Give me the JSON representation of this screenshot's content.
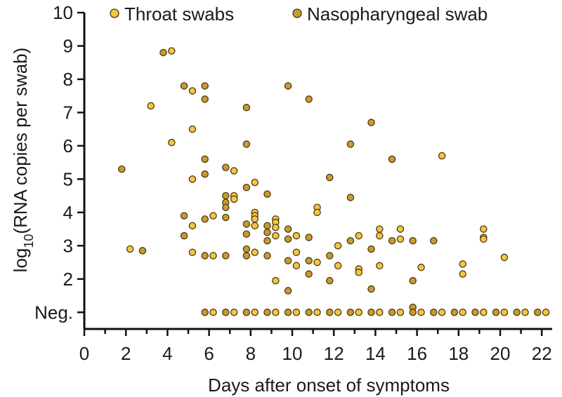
{
  "chart_data": {
    "type": "scatter",
    "title": "",
    "xlabel": "Days after onset of symptoms",
    "ylabel": {
      "prefix": "log",
      "subscript": "10",
      "suffix": "(RNA copies per swab)"
    },
    "xlim": [
      0,
      22.5
    ],
    "ylim": [
      0.5,
      10
    ],
    "x_ticks": [
      0,
      2,
      4,
      6,
      8,
      10,
      12,
      14,
      16,
      18,
      20,
      22
    ],
    "y_ticks": [
      2,
      3,
      4,
      5,
      6,
      7,
      8,
      9,
      10
    ],
    "neg_label": "Neg.",
    "neg_value": 1,
    "legend_position": "top",
    "colors": {
      "throat": "#f5c542",
      "nasopharyngeal": "#c99a30"
    },
    "series": [
      {
        "name": "Throat swabs",
        "key": "throat",
        "points": [
          [
            2.2,
            2.9
          ],
          [
            3.2,
            7.2
          ],
          [
            4.2,
            8.85
          ],
          [
            4.2,
            6.1
          ],
          [
            5.2,
            7.65
          ],
          [
            5.2,
            6.5
          ],
          [
            5.2,
            5.0
          ],
          [
            5.2,
            3.6
          ],
          [
            5.2,
            2.8
          ],
          [
            6.2,
            3.9
          ],
          [
            6.2,
            2.7
          ],
          [
            7.2,
            5.25
          ],
          [
            7.2,
            4.5
          ],
          [
            7.2,
            4.4
          ],
          [
            8.2,
            4.9
          ],
          [
            8.2,
            4.0
          ],
          [
            8.2,
            3.9
          ],
          [
            8.2,
            3.8
          ],
          [
            8.2,
            3.6
          ],
          [
            8.2,
            2.8
          ],
          [
            9.2,
            3.8
          ],
          [
            9.2,
            3.7
          ],
          [
            9.2,
            3.55
          ],
          [
            9.2,
            3.3
          ],
          [
            9.2,
            1.95
          ],
          [
            10.2,
            3.3
          ],
          [
            10.2,
            2.8
          ],
          [
            10.2,
            2.4
          ],
          [
            11.2,
            4.15
          ],
          [
            11.2,
            4.0
          ],
          [
            11.2,
            2.5
          ],
          [
            12.2,
            3.0
          ],
          [
            12.2,
            2.4
          ],
          [
            13.2,
            3.3
          ],
          [
            13.2,
            2.3
          ],
          [
            13.2,
            2.2
          ],
          [
            14.2,
            3.5
          ],
          [
            14.2,
            3.3
          ],
          [
            14.2,
            2.4
          ],
          [
            15.2,
            3.5
          ],
          [
            15.2,
            3.2
          ],
          [
            16.2,
            2.35
          ],
          [
            17.2,
            5.7
          ],
          [
            18.2,
            2.45
          ],
          [
            18.2,
            2.15
          ],
          [
            19.2,
            3.5
          ],
          [
            19.2,
            3.25
          ],
          [
            19.2,
            3.2
          ],
          [
            20.2,
            2.65
          ],
          [
            6.2,
            1
          ],
          [
            7.2,
            1
          ],
          [
            8.2,
            1
          ],
          [
            9.2,
            1
          ],
          [
            10.2,
            1
          ],
          [
            11.2,
            1
          ],
          [
            12.2,
            1
          ],
          [
            13.2,
            1
          ],
          [
            14.2,
            1
          ],
          [
            15.2,
            1
          ],
          [
            16.2,
            1
          ],
          [
            17.2,
            1
          ],
          [
            18.2,
            1
          ],
          [
            19.2,
            1
          ],
          [
            20.2,
            1
          ],
          [
            21.2,
            1
          ],
          [
            22.2,
            1
          ]
        ]
      },
      {
        "name": "Nasopharyngeal swab",
        "key": "nasopharyngeal",
        "points": [
          [
            1.8,
            5.3
          ],
          [
            2.8,
            2.85
          ],
          [
            3.8,
            8.8
          ],
          [
            4.8,
            7.8
          ],
          [
            4.8,
            3.9
          ],
          [
            4.8,
            3.3
          ],
          [
            5.8,
            7.8
          ],
          [
            5.8,
            7.4
          ],
          [
            5.8,
            5.6
          ],
          [
            5.8,
            5.15
          ],
          [
            5.8,
            3.8
          ],
          [
            5.8,
            2.7
          ],
          [
            6.8,
            5.35
          ],
          [
            6.8,
            4.5
          ],
          [
            6.8,
            4.3
          ],
          [
            6.8,
            4.15
          ],
          [
            6.8,
            3.85
          ],
          [
            6.8,
            2.7
          ],
          [
            7.8,
            7.15
          ],
          [
            7.8,
            6.05
          ],
          [
            7.8,
            4.75
          ],
          [
            7.8,
            3.65
          ],
          [
            7.8,
            3.35
          ],
          [
            7.8,
            2.9
          ],
          [
            7.8,
            2.7
          ],
          [
            8.8,
            4.55
          ],
          [
            8.8,
            3.6
          ],
          [
            8.8,
            3.4
          ],
          [
            8.8,
            3.15
          ],
          [
            8.8,
            2.7
          ],
          [
            9.8,
            7.8
          ],
          [
            9.8,
            3.5
          ],
          [
            9.8,
            3.2
          ],
          [
            9.8,
            2.55
          ],
          [
            9.8,
            1.65
          ],
          [
            10.8,
            7.4
          ],
          [
            10.8,
            3.25
          ],
          [
            10.8,
            2.55
          ],
          [
            10.8,
            2.15
          ],
          [
            11.8,
            5.05
          ],
          [
            11.8,
            2.7
          ],
          [
            11.8,
            1.95
          ],
          [
            12.8,
            6.05
          ],
          [
            12.8,
            4.45
          ],
          [
            12.8,
            3.15
          ],
          [
            13.8,
            6.7
          ],
          [
            13.8,
            2.9
          ],
          [
            13.8,
            1.7
          ],
          [
            14.8,
            5.6
          ],
          [
            14.8,
            3.15
          ],
          [
            15.8,
            3.15
          ],
          [
            15.8,
            1.95
          ],
          [
            15.8,
            1.15
          ],
          [
            16.8,
            3.15
          ],
          [
            5.8,
            1
          ],
          [
            6.8,
            1
          ],
          [
            7.8,
            1
          ],
          [
            8.8,
            1
          ],
          [
            9.8,
            1
          ],
          [
            10.8,
            1
          ],
          [
            11.8,
            1
          ],
          [
            12.8,
            1
          ],
          [
            13.8,
            1
          ],
          [
            14.8,
            1
          ],
          [
            15.8,
            1
          ],
          [
            16.8,
            1
          ],
          [
            17.8,
            1
          ],
          [
            18.8,
            1
          ],
          [
            19.8,
            1
          ],
          [
            20.8,
            1
          ],
          [
            21.8,
            1
          ]
        ]
      }
    ]
  }
}
